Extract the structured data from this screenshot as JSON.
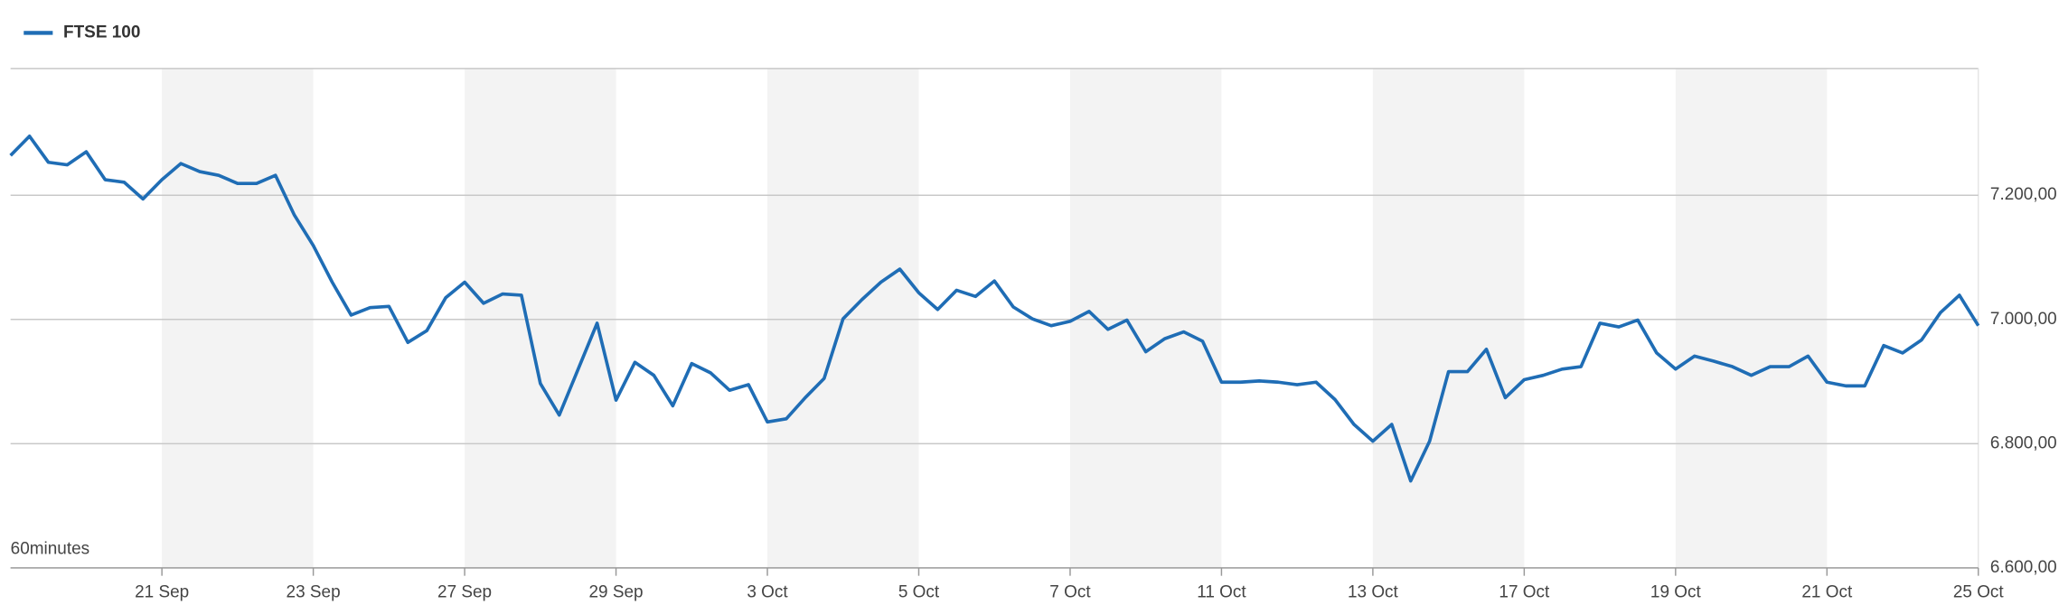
{
  "chart_data": {
    "type": "line",
    "annotation": "60minutes",
    "x": [
      0,
      1,
      2,
      3,
      4,
      5,
      6,
      7,
      8,
      9,
      10,
      11,
      12,
      13,
      14,
      15,
      16,
      17,
      18,
      19,
      20,
      21,
      22,
      23,
      24,
      25,
      26,
      27,
      28,
      29,
      30,
      31,
      32,
      33,
      34,
      35,
      36,
      37,
      38,
      39,
      40,
      41,
      42,
      43,
      44,
      45,
      46,
      47,
      48,
      49,
      50,
      51,
      52,
      53,
      54,
      55,
      56,
      57,
      58,
      59,
      60,
      61,
      62,
      63,
      64,
      65,
      66,
      67,
      68,
      69,
      70,
      71,
      72,
      73,
      74,
      75,
      76,
      77,
      78,
      79,
      80,
      81,
      82,
      83,
      84,
      85,
      86,
      87,
      88,
      89,
      90,
      91,
      92,
      93,
      94,
      95,
      96,
      97,
      98,
      99,
      100,
      101,
      102,
      103,
      104
    ],
    "series": [
      {
        "name": "FTSE 100",
        "color": "#1f6db5",
        "values": [
          7264,
          7295,
          7253,
          7249,
          7270,
          7225,
          7221,
          7194,
          7225,
          7251,
          7238,
          7232,
          7219,
          7219,
          7232,
          7168,
          7119,
          7060,
          7007,
          7019,
          7021,
          6963,
          6982,
          7035,
          7060,
          7026,
          7041,
          7039,
          6897,
          6846,
          6920,
          6994,
          6870,
          6931,
          6910,
          6861,
          6929,
          6914,
          6886,
          6895,
          6835,
          6840,
          6874,
          6905,
          7001,
          7032,
          7060,
          7081,
          7043,
          7016,
          7047,
          7037,
          7062,
          7020,
          7001,
          6990,
          6997,
          7013,
          6984,
          6999,
          6948,
          6969,
          6980,
          6965,
          6899,
          6899,
          6901,
          6899,
          6895,
          6899,
          6871,
          6831,
          6804,
          6831,
          6740,
          6804,
          6916,
          6916,
          6952,
          6874,
          6903,
          6910,
          6920,
          6924,
          6994,
          6988,
          6999,
          6946,
          6920,
          6941,
          6933,
          6924,
          6910,
          6924,
          6924,
          6941,
          6899,
          6893,
          6893,
          6958,
          6946,
          6967,
          7011,
          7039,
          6990
        ]
      }
    ],
    "xlim": [
      0,
      104
    ],
    "xticks": [
      {
        "value": 8,
        "label": "21 Sep"
      },
      {
        "value": 16,
        "label": "23 Sep"
      },
      {
        "value": 24,
        "label": "27 Sep"
      },
      {
        "value": 32,
        "label": "29 Sep"
      },
      {
        "value": 40,
        "label": "3 Oct"
      },
      {
        "value": 48,
        "label": "5 Oct"
      },
      {
        "value": 56,
        "label": "7 Oct"
      },
      {
        "value": 64,
        "label": "11 Oct"
      },
      {
        "value": 72,
        "label": "13 Oct"
      },
      {
        "value": 80,
        "label": "17 Oct"
      },
      {
        "value": 88,
        "label": "19 Oct"
      },
      {
        "value": 96,
        "label": "21 Oct"
      },
      {
        "value": 104,
        "label": "25 Oct"
      }
    ],
    "ylim": [
      6600,
      7404
    ],
    "yticks": [
      {
        "value": 6600,
        "label": "6.600,00"
      },
      {
        "value": 6800,
        "label": "6.800,00"
      },
      {
        "value": 7000,
        "label": "7.000,00"
      },
      {
        "value": 7200,
        "label": "7.200,00"
      }
    ],
    "grid": true,
    "legend": "top-left"
  }
}
